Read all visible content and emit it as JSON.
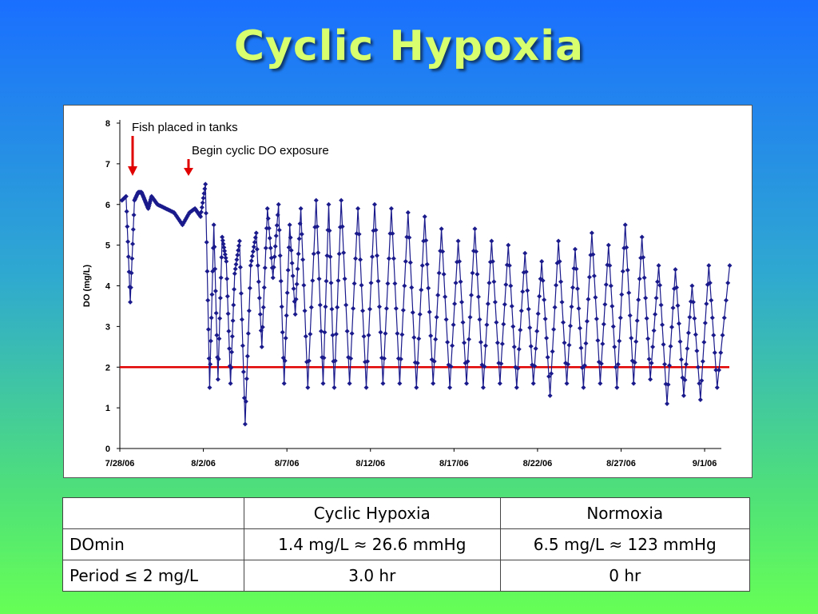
{
  "slide": {
    "title": "Cyclic Hypoxia"
  },
  "chart_data": {
    "type": "line",
    "xlabel": "",
    "ylabel": "DO (mg/L)",
    "ylim": [
      0,
      8
    ],
    "xlim": [
      "2006-07-28",
      "2006-09-02"
    ],
    "x_ticks": [
      "7/28/06",
      "8/2/06",
      "8/7/06",
      "8/12/06",
      "8/17/06",
      "8/22/06",
      "8/27/06",
      "9/1/06"
    ],
    "y_ticks": [
      "0",
      "1",
      "2",
      "3",
      "4",
      "5",
      "6",
      "7",
      "8"
    ],
    "reference_line": {
      "y": 2,
      "color": "#e00000"
    },
    "series_color": "#1a1a8c",
    "annotations": [
      {
        "text": "Fish placed in tanks",
        "date": "2006-07-28",
        "arrow_color": "#e00000"
      },
      {
        "text": "Begin cyclic DO exposure",
        "date": "2006-08-01",
        "arrow_color": "#e00000"
      }
    ],
    "series": [
      {
        "x": [
          "2006-07-28",
          "2006-07-28",
          "2006-07-28",
          "2006-07-28",
          "2006-07-29",
          "2006-07-29",
          "2006-07-29",
          "2006-07-29",
          "2006-07-29",
          "2006-07-30",
          "2006-07-30",
          "2006-07-31",
          "2006-07-31",
          "2006-08-01",
          "2006-08-01",
          "2006-08-01",
          "2006-08-02",
          "2006-08-02",
          "2006-08-02",
          "2006-08-02",
          "2006-08-03",
          "2006-08-03",
          "2006-08-03",
          "2006-08-03",
          "2006-08-04",
          "2006-08-04",
          "2006-08-04",
          "2006-08-05",
          "2006-08-05",
          "2006-08-05",
          "2006-08-06",
          "2006-08-06",
          "2006-08-06",
          "2006-08-07",
          "2006-08-07",
          "2006-08-07",
          "2006-08-08",
          "2006-08-08",
          "2006-08-09",
          "2006-08-09",
          "2006-08-09",
          "2006-08-10",
          "2006-08-10",
          "2006-08-11",
          "2006-08-11",
          "2006-08-12",
          "2006-08-12",
          "2006-08-13",
          "2006-08-13",
          "2006-08-14",
          "2006-08-14",
          "2006-08-15",
          "2006-08-15",
          "2006-08-16",
          "2006-08-16",
          "2006-08-17",
          "2006-08-17",
          "2006-08-18",
          "2006-08-18",
          "2006-08-19",
          "2006-08-19",
          "2006-08-20",
          "2006-08-20",
          "2006-08-21",
          "2006-08-21",
          "2006-08-22",
          "2006-08-22",
          "2006-08-23",
          "2006-08-23",
          "2006-08-24",
          "2006-08-24",
          "2006-08-25",
          "2006-08-25",
          "2006-08-26",
          "2006-08-26",
          "2006-08-27",
          "2006-08-27",
          "2006-08-28",
          "2006-08-28",
          "2006-08-29",
          "2006-08-29",
          "2006-08-30",
          "2006-08-30",
          "2006-08-31",
          "2006-08-31",
          "2006-09-01",
          "2006-09-01",
          "2006-09-02"
        ],
        "y": [
          6.1,
          6.2,
          3.6,
          6.1,
          6.3,
          6.3,
          6.1,
          5.9,
          6.2,
          6.0,
          5.9,
          5.8,
          5.5,
          5.8,
          5.9,
          5.7,
          6.5,
          1.5,
          5.5,
          1.7,
          5.2,
          4.6,
          1.6,
          4.3,
          5.1,
          0.6,
          4.5,
          5.3,
          2.5,
          5.9,
          4.2,
          6.0,
          1.6,
          5.5,
          3.3,
          5.9,
          1.5,
          6.1,
          1.6,
          6.0,
          1.5,
          6.1,
          1.6,
          5.9,
          1.5,
          6.0,
          1.6,
          5.9,
          1.6,
          5.8,
          1.5,
          5.7,
          1.6,
          5.4,
          1.5,
          5.1,
          1.6,
          5.4,
          1.5,
          5.1,
          1.6,
          5.0,
          1.5,
          4.8,
          1.6,
          4.6,
          1.3,
          5.1,
          1.6,
          4.9,
          1.5,
          5.3,
          1.6,
          5.0,
          1.5,
          5.5,
          1.6,
          5.2,
          1.7,
          4.5,
          1.1,
          4.4,
          1.3,
          4.0,
          1.2,
          4.5,
          1.5,
          4.5
        ]
      }
    ]
  },
  "table": {
    "headers": [
      "",
      "Cyclic Hypoxia",
      "Normoxia"
    ],
    "rows": [
      {
        "label": "DOmin",
        "cyclic": "1.4 mg/L ≈ 26.6 mmHg",
        "normoxia": "6.5 mg/L ≈ 123 mmHg"
      },
      {
        "label": "Period ≤ 2 mg/L",
        "cyclic": "3.0 hr",
        "normoxia": "0 hr"
      }
    ]
  }
}
